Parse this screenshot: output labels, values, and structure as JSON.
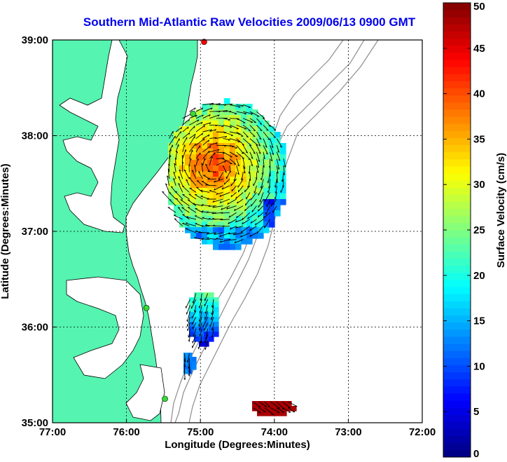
{
  "title": "Southern Mid-Atlantic Raw Velocities 2009/06/13 0900 GMT",
  "map": {
    "xlabel": "Longitude (Degrees:Minutes)",
    "ylabel": "Latitude (Degrees:Minutes)",
    "lon_range": [
      -77,
      -72
    ],
    "lat_range": [
      35,
      39
    ],
    "x_ticks": [
      "77:00",
      "76:00",
      "75:00",
      "74:00",
      "73:00",
      "72:00"
    ],
    "y_ticks": [
      "35:00",
      "36:00",
      "37:00",
      "38:00",
      "39:00"
    ],
    "grid": "dotted",
    "land_color": "#55f4b0",
    "bathymetry_color": "#8c8c8c"
  },
  "colorbar": {
    "label": "Surface Velocity (cm/s)",
    "range": [
      0,
      50
    ],
    "ticks": [
      "0",
      "5",
      "10",
      "15",
      "20",
      "25",
      "30",
      "35",
      "40",
      "45",
      "50"
    ],
    "colormap": "jet"
  },
  "stations": [
    {
      "lon": -74.95,
      "lat": 38.98,
      "color": "#ff0000"
    },
    {
      "lon": -75.1,
      "lat": 38.23,
      "color": "#33dd33"
    },
    {
      "lon": -75.73,
      "lat": 36.2,
      "color": "#33dd33"
    },
    {
      "lon": -75.48,
      "lat": 35.25,
      "color": "#33dd33"
    }
  ]
}
